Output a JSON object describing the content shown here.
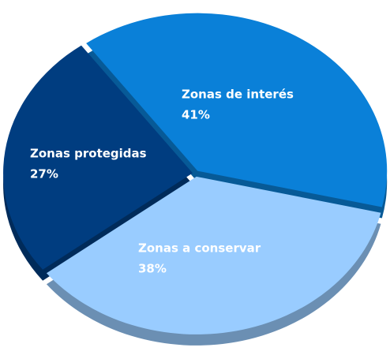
{
  "chart_data": {
    "type": "pie",
    "categories": [
      "Zonas de interés",
      "Zonas a conservar",
      "Zonas protegidas"
    ],
    "values": [
      41,
      38,
      27
    ],
    "value_labels": [
      "41%",
      "38%",
      "27%"
    ],
    "colors": [
      "#0a80d8",
      "#99ccff",
      "#003d80"
    ]
  }
}
